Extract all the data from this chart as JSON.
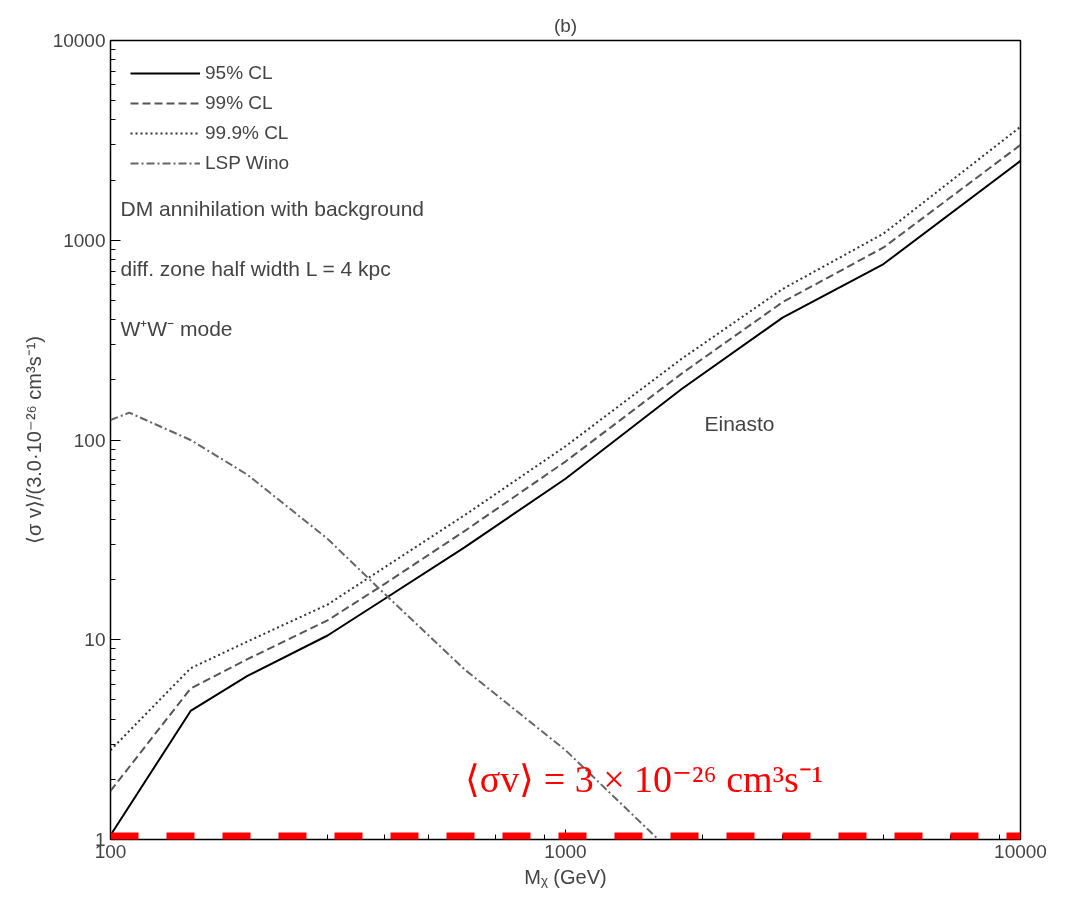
{
  "chart_data": {
    "type": "line",
    "title": "(b)",
    "xlabel": "Mᵪ (GeV)",
    "ylabel": "⟨σ v⟩/(3.0·10⁻²⁶ cm³s⁻¹)",
    "log": "xy",
    "xlim": [
      100,
      10000
    ],
    "ylim": [
      1,
      10000
    ],
    "xticks": [
      100,
      1000,
      10000
    ],
    "yticks": [
      1,
      10,
      100,
      1000,
      10000
    ],
    "grid": false,
    "legend": "top left",
    "series": [
      {
        "name": "95% CL",
        "color": "#000000",
        "line_style": "solid",
        "x": [
          100,
          150,
          200,
          300,
          400,
          600,
          1000,
          1800,
          3000,
          5000,
          10000
        ],
        "values": [
          1.05,
          4.4,
          6.6,
          10.5,
          16,
          29,
          64,
          180,
          410,
          760,
          2500
        ]
      },
      {
        "name": "99% CL",
        "color": "#555555",
        "line_style": "dashed",
        "x": [
          100,
          150,
          200,
          300,
          400,
          600,
          1000,
          1800,
          3000,
          5000,
          10000
        ],
        "values": [
          1.75,
          5.7,
          8.0,
          12.5,
          19,
          35,
          78,
          215,
          490,
          920,
          3000
        ]
      },
      {
        "name": "99.9% CL",
        "color": "#333333",
        "line_style": "dotted",
        "x": [
          100,
          150,
          200,
          300,
          400,
          600,
          1000,
          1800,
          3000,
          5000,
          10000
        ],
        "values": [
          2.8,
          7.2,
          9.8,
          15,
          23,
          42,
          93,
          255,
          570,
          1080,
          3700
        ]
      },
      {
        "name": "LSP Wino",
        "color": "#666666",
        "line_style": "dashdot",
        "x": [
          100,
          110,
          150,
          200,
          300,
          400,
          600,
          1000,
          1600
        ],
        "values": [
          126,
          137,
          100,
          67,
          32,
          17,
          7.1,
          2.8,
          1.0
        ]
      }
    ],
    "ref_lines": [
      {
        "axis": "y",
        "value": 1,
        "color": "#ff0000",
        "line_style": "dashed"
      }
    ],
    "annotations": [
      "DM annihilation with background",
      "diff. zone half width L = 4 kpc",
      "W⁺W⁻ mode",
      "Einasto",
      "⟨σv⟩ = 3 × 10⁻²⁶ cm³s⁻¹"
    ]
  }
}
